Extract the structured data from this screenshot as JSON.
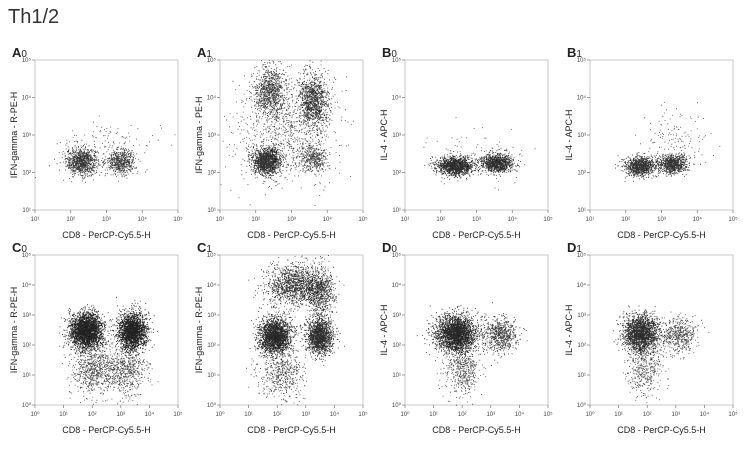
{
  "page_title": "Th1/2",
  "chart_data": [
    {
      "id": "A0",
      "type": "scatter",
      "title_letter": "A",
      "title_sub": "0",
      "xlabel": "CD8 - PerCP-Cy5.5-H",
      "ylabel": "IFN-gamma - R-PE-H",
      "xscale": "log",
      "yscale": "log",
      "xlim": [
        10,
        100000
      ],
      "ylim": [
        10,
        100000
      ],
      "x_ticks": [
        10,
        100,
        1000,
        10000,
        100000
      ],
      "y_ticks": [
        10,
        100,
        1000,
        10000,
        100000
      ],
      "populations": [
        {
          "x_center": 200,
          "y_center": 200,
          "x_spread": 0.22,
          "y_spread": 0.18,
          "density": 0.55,
          "count": 900
        },
        {
          "x_center": 2500,
          "y_center": 200,
          "x_spread": 0.2,
          "y_spread": 0.16,
          "density": 0.45,
          "count": 600
        },
        {
          "x_center": 1200,
          "y_center": 500,
          "x_spread": 0.7,
          "y_spread": 0.35,
          "density": 0.3,
          "count": 120
        }
      ]
    },
    {
      "id": "A1",
      "type": "scatter",
      "title_letter": "A",
      "title_sub": "1",
      "xlabel": "CD8 - PerCP-Cy5.5-H",
      "ylabel": "IFN-gamma - PE-H",
      "xscale": "log",
      "yscale": "log",
      "xlim": [
        10,
        100000
      ],
      "ylim": [
        10,
        100000
      ],
      "x_ticks": [
        10,
        100,
        1000,
        10000,
        100000
      ],
      "y_ticks": [
        10,
        100,
        1000,
        10000,
        100000
      ],
      "populations": [
        {
          "x_center": 200,
          "y_center": 200,
          "x_spread": 0.2,
          "y_spread": 0.18,
          "density": 0.55,
          "count": 1400
        },
        {
          "x_center": 250,
          "y_center": 15000,
          "x_spread": 0.22,
          "y_spread": 0.35,
          "density": 0.45,
          "count": 900
        },
        {
          "x_center": 4000,
          "y_center": 8000,
          "x_spread": 0.2,
          "y_spread": 0.35,
          "density": 0.5,
          "count": 1100
        },
        {
          "x_center": 4000,
          "y_center": 250,
          "x_spread": 0.2,
          "y_spread": 0.2,
          "density": 0.3,
          "count": 450
        },
        {
          "x_center": 600,
          "y_center": 1500,
          "x_spread": 0.7,
          "y_spread": 0.7,
          "density": 0.3,
          "count": 900
        }
      ]
    },
    {
      "id": "B0",
      "type": "scatter",
      "title_letter": "B",
      "title_sub": "0",
      "xlabel": "CD8 - PerCP-Cy5.5-H",
      "ylabel": "IL-4 - APC-H",
      "xscale": "log",
      "yscale": "log",
      "xlim": [
        10,
        100000
      ],
      "ylim": [
        10,
        100000
      ],
      "x_ticks": [
        10,
        100,
        1000,
        10000,
        100000
      ],
      "y_ticks": [
        10,
        100,
        1000,
        10000,
        100000
      ],
      "populations": [
        {
          "x_center": 250,
          "y_center": 150,
          "x_spread": 0.25,
          "y_spread": 0.12,
          "density": 0.6,
          "count": 1300
        },
        {
          "x_center": 3500,
          "y_center": 180,
          "x_spread": 0.22,
          "y_spread": 0.12,
          "density": 0.6,
          "count": 1000
        },
        {
          "x_center": 1000,
          "y_center": 300,
          "x_spread": 0.8,
          "y_spread": 0.3,
          "density": 0.3,
          "count": 120
        }
      ]
    },
    {
      "id": "B1",
      "type": "scatter",
      "title_letter": "B",
      "title_sub": "1",
      "xlabel": "CD8 - PerCP-Cy5.5-H",
      "ylabel": "IL-4 - APC-H",
      "xscale": "log",
      "yscale": "log",
      "xlim": [
        10,
        100000
      ],
      "ylim": [
        10,
        100000
      ],
      "x_ticks": [
        10,
        100,
        1000,
        10000,
        100000
      ],
      "y_ticks": [
        10,
        100,
        1000,
        10000,
        100000
      ],
      "populations": [
        {
          "x_center": 250,
          "y_center": 150,
          "x_spread": 0.22,
          "y_spread": 0.13,
          "density": 0.55,
          "count": 1000
        },
        {
          "x_center": 2000,
          "y_center": 170,
          "x_spread": 0.2,
          "y_spread": 0.13,
          "density": 0.55,
          "count": 800
        },
        {
          "x_center": 2500,
          "y_center": 800,
          "x_spread": 0.45,
          "y_spread": 0.4,
          "density": 0.3,
          "count": 140
        }
      ]
    },
    {
      "id": "C0",
      "type": "scatter",
      "title_letter": "C",
      "title_sub": "0",
      "xlabel": "CD8 - PerCP-Cy5.5-H",
      "ylabel": "IFN-gamma - R-PE-H",
      "xscale": "log",
      "yscale": "log",
      "xlim": [
        1,
        100000
      ],
      "ylim": [
        1,
        100000
      ],
      "x_ticks": [
        1,
        10,
        100,
        1000,
        10000,
        100000
      ],
      "y_ticks": [
        1,
        10,
        100,
        1000,
        10000,
        100000
      ],
      "populations": [
        {
          "x_center": 60,
          "y_center": 300,
          "x_spread": 0.28,
          "y_spread": 0.3,
          "density": 0.7,
          "count": 2800
        },
        {
          "x_center": 2500,
          "y_center": 300,
          "x_spread": 0.25,
          "y_spread": 0.3,
          "density": 0.7,
          "count": 2200
        },
        {
          "x_center": 120,
          "y_center": 15,
          "x_spread": 0.4,
          "y_spread": 0.4,
          "density": 0.35,
          "count": 700
        },
        {
          "x_center": 1500,
          "y_center": 15,
          "x_spread": 0.35,
          "y_spread": 0.4,
          "density": 0.35,
          "count": 600
        }
      ]
    },
    {
      "id": "C1",
      "type": "scatter",
      "title_letter": "C",
      "title_sub": "1",
      "xlabel": "CD8 - PerCP-Cy5.5-H",
      "ylabel": "IFN-gamma - R-PE-H",
      "xscale": "log",
      "yscale": "log",
      "xlim": [
        1,
        100000
      ],
      "ylim": [
        1,
        100000
      ],
      "x_ticks": [
        1,
        10,
        100,
        1000,
        10000,
        100000
      ],
      "y_ticks": [
        1,
        10,
        100,
        1000,
        10000,
        100000
      ],
      "populations": [
        {
          "x_center": 80,
          "y_center": 200,
          "x_spread": 0.28,
          "y_spread": 0.3,
          "density": 0.65,
          "count": 2200
        },
        {
          "x_center": 3000,
          "y_center": 200,
          "x_spread": 0.22,
          "y_spread": 0.3,
          "density": 0.6,
          "count": 1500
        },
        {
          "x_center": 400,
          "y_center": 10000,
          "x_spread": 0.5,
          "y_spread": 0.35,
          "density": 0.5,
          "count": 1400
        },
        {
          "x_center": 3000,
          "y_center": 6000,
          "x_spread": 0.25,
          "y_spread": 0.4,
          "density": 0.45,
          "count": 700
        },
        {
          "x_center": 150,
          "y_center": 10,
          "x_spread": 0.4,
          "y_spread": 0.4,
          "density": 0.35,
          "count": 500
        }
      ]
    },
    {
      "id": "D0",
      "type": "scatter",
      "title_letter": "D",
      "title_sub": "0",
      "xlabel": "CD8 - PerCP-Cy5.5-H",
      "ylabel": "IL-4 - APC-H",
      "xscale": "log",
      "yscale": "log",
      "xlim": [
        1,
        100000
      ],
      "ylim": [
        1,
        100000
      ],
      "x_ticks": [
        1,
        10,
        100,
        1000,
        10000,
        100000
      ],
      "y_ticks": [
        1,
        10,
        100,
        1000,
        10000,
        100000
      ],
      "populations": [
        {
          "x_center": 60,
          "y_center": 250,
          "x_spread": 0.35,
          "y_spread": 0.3,
          "density": 0.65,
          "count": 2600
        },
        {
          "x_center": 2000,
          "y_center": 220,
          "x_spread": 0.3,
          "y_spread": 0.3,
          "density": 0.45,
          "count": 700
        },
        {
          "x_center": 100,
          "y_center": 15,
          "x_spread": 0.3,
          "y_spread": 0.4,
          "density": 0.3,
          "count": 500
        }
      ]
    },
    {
      "id": "D1",
      "type": "scatter",
      "title_letter": "D",
      "title_sub": "1",
      "xlabel": "CD8 - PerCP-Cy5.5-H",
      "ylabel": "IL-4 - APC-H",
      "xscale": "log",
      "yscale": "log",
      "xlim": [
        1,
        100000
      ],
      "ylim": [
        1,
        100000
      ],
      "x_ticks": [
        1,
        10,
        100,
        1000,
        10000,
        100000
      ],
      "y_ticks": [
        1,
        10,
        100,
        1000,
        10000,
        100000
      ],
      "populations": [
        {
          "x_center": 60,
          "y_center": 250,
          "x_spread": 0.3,
          "y_spread": 0.3,
          "density": 0.6,
          "count": 2000
        },
        {
          "x_center": 1200,
          "y_center": 220,
          "x_spread": 0.3,
          "y_spread": 0.3,
          "density": 0.4,
          "count": 500
        },
        {
          "x_center": 80,
          "y_center": 15,
          "x_spread": 0.3,
          "y_spread": 0.4,
          "density": 0.3,
          "count": 400
        }
      ]
    }
  ]
}
